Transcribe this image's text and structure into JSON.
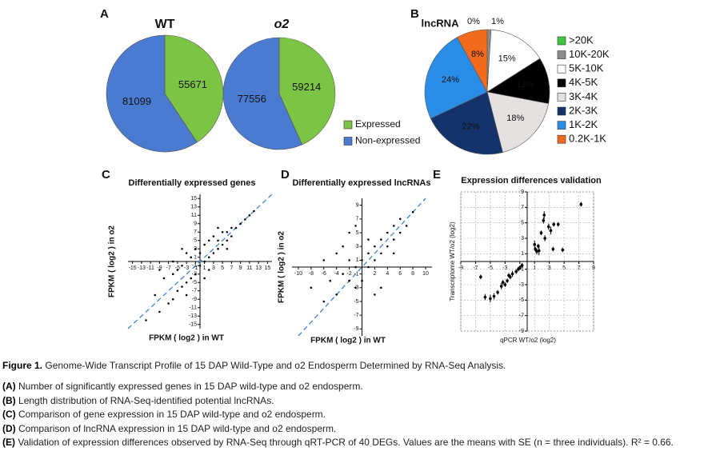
{
  "chart_data": [
    {
      "type": "pie",
      "panel": "A",
      "title": "WT",
      "categories": [
        "Expressed",
        "Non-expressed"
      ],
      "values": [
        55671,
        81099
      ],
      "colors": [
        "#7cc444",
        "#4a7bd0"
      ]
    },
    {
      "type": "pie",
      "title": "o2",
      "values": [
        59214,
        77556
      ],
      "colors": [
        "#7cc444",
        "#4a7bd0"
      ]
    },
    {
      "type": "pie",
      "panel": "B",
      "title": "lncRNA",
      "categories": [
        ">20K",
        "10K-20K",
        "5K-10K",
        "4K-5K",
        "3K-4K",
        "2K-3K",
        "1K-2K",
        "0.2K-1K"
      ],
      "values": [
        0,
        1,
        15,
        12,
        18,
        22,
        24,
        8
      ],
      "value_labels": [
        "0%",
        "1%",
        "15%",
        "12%",
        "18%",
        "22%",
        "24%",
        "8%"
      ],
      "colors": [
        "#3ec43e",
        "#8c8c8c",
        "#ffffff",
        "#000000",
        "#e4e0e0",
        "#14336a",
        "#2a8ee8",
        "#f26a1b"
      ]
    },
    {
      "type": "scatter",
      "panel": "C",
      "title": "Differentially expressed genes",
      "x_label": "FPKM ( log2 ) in WT",
      "y_label": "FPKM ( log2 ) in o2",
      "x": [
        -12,
        -10,
        -9,
        -8,
        -7,
        -6,
        -6,
        -5,
        -5,
        -4,
        -4,
        -3,
        -3,
        -2,
        -2,
        -1,
        -1,
        0,
        0,
        1,
        1,
        2,
        2,
        3,
        3,
        4,
        4,
        5,
        5,
        6,
        6,
        7,
        7,
        8,
        9,
        10,
        11,
        12,
        -3,
        2,
        -6,
        4,
        -9,
        1,
        -4,
        6
      ],
      "y": [
        -14,
        -8,
        -12,
        -4,
        -10,
        -3,
        -9,
        -7,
        -2,
        -6,
        -1,
        -5,
        2,
        -4,
        1,
        -3,
        3,
        -1,
        2,
        0,
        4,
        1,
        5,
        2,
        6,
        3,
        5,
        4,
        7,
        5,
        7,
        6,
        8,
        8,
        9,
        10,
        11,
        12,
        -8,
        -2,
        0,
        8,
        -2,
        -4,
        3,
        3
      ],
      "xlim": [
        -16,
        16
      ],
      "ylim": [
        -16,
        16
      ],
      "xticks": [
        -15,
        -13,
        -11,
        -9,
        -7,
        -5,
        -3,
        -1,
        1,
        3,
        5,
        7,
        9,
        11,
        13,
        15
      ],
      "yticks": [
        -15,
        -13,
        -11,
        -9,
        -7,
        -5,
        -3,
        -1,
        1,
        3,
        5,
        7,
        9,
        11,
        13,
        15
      ],
      "color": "#000000",
      "diagonal_color": "#3a86d0"
    },
    {
      "type": "scatter",
      "panel": "D",
      "title": "Differentially expressed lncRNAs",
      "x_label": "FPKM ( log2 ) in WT",
      "y_label": "FPKM ( log2 ) in o2",
      "x": [
        -8,
        -6,
        -5,
        -4,
        -3,
        -3,
        -2,
        -2,
        -1,
        -1,
        0,
        0,
        1,
        1,
        2,
        2,
        3,
        3,
        4,
        4,
        5,
        5,
        6,
        6,
        7,
        8,
        -2,
        3,
        -4,
        1,
        2,
        -1,
        5,
        -6
      ],
      "y": [
        -3,
        -5,
        -2,
        -4,
        -1,
        3,
        -2,
        1,
        0,
        -3,
        1,
        -2,
        2,
        0,
        3,
        1,
        2,
        4,
        3,
        5,
        4,
        6,
        5,
        7,
        6,
        8,
        5,
        -3,
        2,
        4,
        -4,
        6,
        2,
        1
      ],
      "xlim": [
        -11,
        11
      ],
      "ylim": [
        -10,
        10
      ],
      "xticks": [
        -10,
        -8,
        -6,
        -4,
        -2,
        2,
        4,
        6,
        8,
        10
      ],
      "yticks": [
        -9,
        -7,
        -5,
        -3,
        -1,
        1,
        3,
        5,
        7,
        9
      ],
      "color": "#000000",
      "diagonal_color": "#3a86d0"
    },
    {
      "type": "errorscatter",
      "panel": "E",
      "title": "Expression differences validation",
      "x_label": "qPCR WT/o2 (log2)",
      "y_label": "Transcriptome WT/o2 (log2)",
      "x": [
        7.3,
        2.3,
        2.2,
        3.6,
        4.2,
        2.9,
        3.2,
        1.9,
        2.4,
        1,
        1.5,
        1.1,
        1.3,
        4.8,
        3.5,
        1.6,
        -0.7,
        -1.2,
        -1.5,
        -2,
        -2.3,
        -2.7,
        -3,
        -3.5,
        -4,
        -4.5,
        -5,
        -5.7,
        -6.3,
        -1,
        -3.3,
        -2.5
      ],
      "y": [
        7.4,
        6,
        5.3,
        4.8,
        4.8,
        4.5,
        4,
        3.7,
        3,
        2.2,
        2,
        1.6,
        1.3,
        1.5,
        1.6,
        1.4,
        -0.5,
        -1,
        -1.3,
        -1.6,
        -2,
        -2.5,
        -3,
        -3.2,
        -4,
        -4.5,
        -4.8,
        -4.6,
        -2,
        -0.8,
        -2.7,
        -1.8
      ],
      "y_err": [
        0.3,
        0.5,
        0.4,
        0.3,
        0.3,
        0.4,
        0.5,
        0.3,
        0.4,
        0.5,
        0.3,
        0.3,
        0.4,
        0.3,
        0.3,
        0.6,
        0.3,
        0.3,
        0.3,
        0.4,
        0.3,
        0.3,
        0.3,
        0.4,
        0.3,
        0.4,
        0.5,
        0.4,
        0.3,
        0.3,
        0.3,
        0.3
      ],
      "xlim": [
        -9,
        9
      ],
      "ylim": [
        -9,
        9
      ],
      "xticks": [
        -9,
        -7,
        -5,
        -3,
        -1,
        1,
        3,
        5,
        7,
        9
      ],
      "yticks": [
        -9,
        -7,
        -5,
        -3,
        -1,
        1,
        3,
        5,
        7,
        9
      ],
      "grid": true,
      "color": "#000000"
    }
  ],
  "caption": {
    "label": "Figure 1.",
    "title": "Genome-Wide Transcript Profile of 15 DAP Wild-Type and o2 Endosperm Determined by RNA-Seq Analysis.",
    "items": [
      {
        "label": "(A)",
        "text": "Number of significantly expressed genes in 15 DAP wild-type and o2 endosperm."
      },
      {
        "label": "(B)",
        "text": "Length distribution of RNA-Seq-identified potential lncRNAs."
      },
      {
        "label": "(C)",
        "text": "Comparison of gene expression in 15 DAP wild-type and o2 endosperm."
      },
      {
        "label": "(D)",
        "text": "Comparison of lncRNA expression in 15 DAP wild-type and o2 endosperm."
      },
      {
        "label": "(E)",
        "text": "Validation of expression differences observed by RNA-Seq through qRT-PCR of 40 DEGs. Values are the means with SE (n = three individuals). R² = 0.66."
      }
    ]
  }
}
